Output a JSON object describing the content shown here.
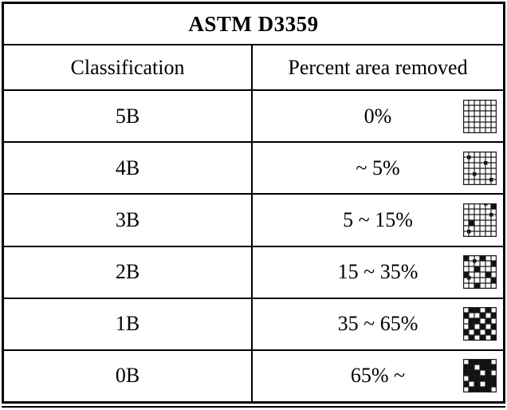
{
  "table": {
    "title": "ASTM D3359",
    "columns": [
      "Classification",
      "Percent area removed"
    ],
    "rows": [
      {
        "classification": "5B",
        "percent": "0%",
        "icon": {
          "name": "crosshatch-grid-0-percent",
          "cells": [],
          "flecks": []
        }
      },
      {
        "classification": "4B",
        "percent": "~ 5%",
        "icon": {
          "name": "crosshatch-grid-5-percent",
          "cells": [],
          "flecks": [
            [
              1,
              1
            ],
            [
              2,
              4
            ],
            [
              4,
              2
            ],
            [
              5,
              5
            ]
          ]
        }
      },
      {
        "classification": "3B",
        "percent": "5 ~ 15%",
        "icon": {
          "name": "crosshatch-grid-5-15-percent",
          "cells": [
            [
              3,
              1
            ],
            [
              0,
              5
            ]
          ],
          "flecks": [
            [
              0,
              4
            ],
            [
              2,
              5
            ],
            [
              5,
              1
            ]
          ]
        }
      },
      {
        "classification": "2B",
        "percent": "15 ~ 35%",
        "icon": {
          "name": "crosshatch-grid-15-35-percent",
          "cells": [
            [
              0,
              0
            ],
            [
              0,
              3
            ],
            [
              1,
              5
            ],
            [
              2,
              2
            ],
            [
              3,
              0
            ],
            [
              3,
              4
            ],
            [
              4,
              5
            ],
            [
              5,
              2
            ]
          ],
          "flecks": [
            [
              1,
              2
            ],
            [
              4,
              1
            ]
          ]
        }
      },
      {
        "classification": "1B",
        "percent": "35 ~ 65%",
        "icon": {
          "name": "crosshatch-grid-35-65-percent",
          "cells": [
            [
              0,
              1
            ],
            [
              0,
              2
            ],
            [
              0,
              4
            ],
            [
              1,
              0
            ],
            [
              1,
              3
            ],
            [
              1,
              5
            ],
            [
              2,
              1
            ],
            [
              2,
              2
            ],
            [
              2,
              4
            ],
            [
              3,
              1
            ],
            [
              3,
              3
            ],
            [
              3,
              5
            ],
            [
              4,
              0
            ],
            [
              4,
              2
            ],
            [
              4,
              4
            ],
            [
              5,
              1
            ],
            [
              5,
              3
            ],
            [
              5,
              5
            ]
          ],
          "flecks": []
        }
      },
      {
        "classification": "0B",
        "percent": "65% ~",
        "icon": {
          "name": "crosshatch-grid-65-percent",
          "cells": [
            [
              0,
              1
            ],
            [
              0,
              2
            ],
            [
              0,
              3
            ],
            [
              0,
              4
            ],
            [
              1,
              0
            ],
            [
              1,
              1
            ],
            [
              1,
              3
            ],
            [
              1,
              4
            ],
            [
              1,
              5
            ],
            [
              2,
              0
            ],
            [
              2,
              1
            ],
            [
              2,
              2
            ],
            [
              2,
              4
            ],
            [
              3,
              1
            ],
            [
              3,
              2
            ],
            [
              3,
              3
            ],
            [
              3,
              4
            ],
            [
              3,
              5
            ],
            [
              4,
              0
            ],
            [
              4,
              2
            ],
            [
              4,
              4
            ],
            [
              4,
              5
            ],
            [
              5,
              1
            ],
            [
              5,
              2
            ],
            [
              5,
              3
            ],
            [
              5,
              4
            ]
          ],
          "flecks": []
        }
      }
    ]
  },
  "colors": {
    "border": "#000000",
    "background": "#ffffff",
    "text": "#000000",
    "grid_line": "#1a1a1a",
    "grid_fill": "#111111"
  }
}
